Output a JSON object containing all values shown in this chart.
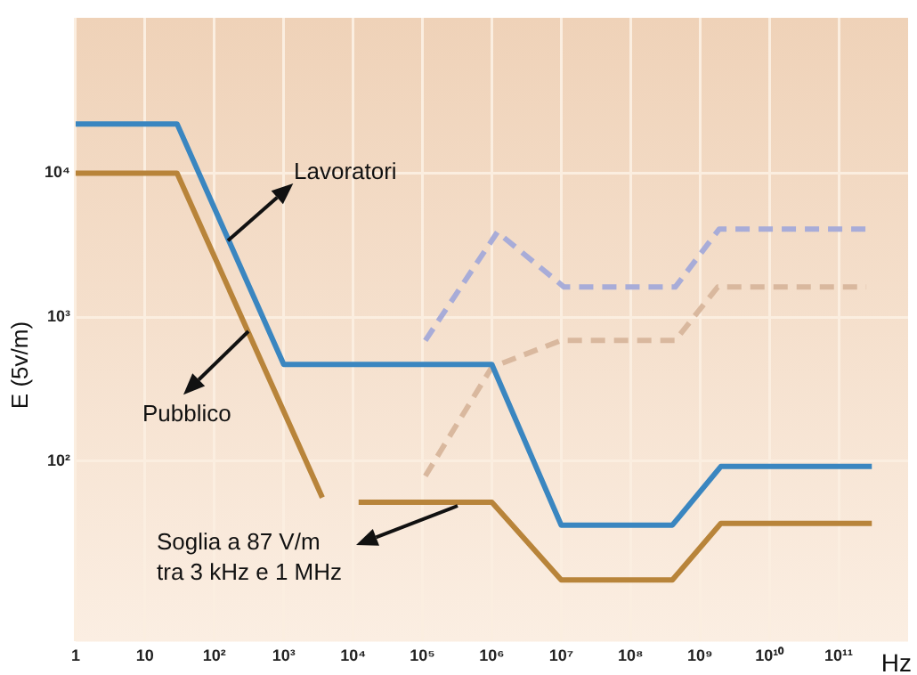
{
  "chart_data": {
    "type": "line",
    "xlabel": "Hz",
    "ylabel": "E (5v/m)",
    "log": "xy",
    "grid": true,
    "legend": false,
    "marker": "none",
    "xlim": [
      1,
      1000000000000
    ],
    "ylim": [
      5.6,
      120000
    ],
    "xticks": [
      1,
      10,
      {
        "value": 100,
        "label": "10²"
      },
      {
        "value": 1000,
        "label": "10³"
      },
      {
        "value": 10000,
        "label": "10⁴"
      },
      {
        "value": 100000,
        "label": "10⁵"
      },
      {
        "value": 1000000,
        "label": "10⁶"
      },
      {
        "value": 10000000,
        "label": "10⁷"
      },
      {
        "value": 100000000,
        "label": "10⁸"
      },
      {
        "value": 1000000000,
        "label": "10⁹"
      },
      {
        "value": 10000000000,
        "label": "10¹⁰"
      },
      {
        "value": 100000000000,
        "label": "10¹¹"
      }
    ],
    "yticks": [
      {
        "value": 100,
        "label": "10²"
      },
      {
        "value": 1000,
        "label": "10³"
      },
      {
        "value": 10000,
        "label": "10⁴"
      }
    ],
    "series": [
      {
        "color": "#3a86c0",
        "line_style": "solid",
        "x": [
          1,
          29,
          1000,
          1000000,
          10000000,
          400000000,
          2000000000,
          300000000000
        ],
        "values": [
          22000,
          22000,
          470,
          470,
          36,
          36,
          92,
          92
        ]
      },
      {
        "color": "#b8843a",
        "line_style": "solid",
        "x": [
          1,
          29,
          3600,
          6000,
          12000,
          1000000,
          10000000,
          400000000,
          2000000000,
          300000000000
        ],
        "values": [
          10000,
          10000,
          56,
          null,
          52,
          52,
          15,
          15,
          37,
          37
        ]
      },
      {
        "color": "#a8acd8",
        "line_style": "dashed",
        "x": [
          110000,
          1200000,
          11000000,
          440000000,
          1900000000,
          250000000000
        ],
        "values": [
          690,
          3900,
          1620,
          1620,
          4100,
          4100
        ]
      },
      {
        "color": "#d9b89e",
        "line_style": "dashed",
        "x": [
          110000,
          1000000,
          10000000,
          440000000,
          1800000000,
          250000000000
        ],
        "values": [
          79,
          450,
          690,
          690,
          1620,
          1620
        ]
      }
    ],
    "annotations": [
      {
        "text": "Lavoratori",
        "x": 160,
        "y": 3400
      },
      {
        "text": "Pubblico",
        "x": 310,
        "y": 790
      },
      "Soglia a 87 V/m\ntra 3 kHz e 1 MHz"
    ]
  }
}
